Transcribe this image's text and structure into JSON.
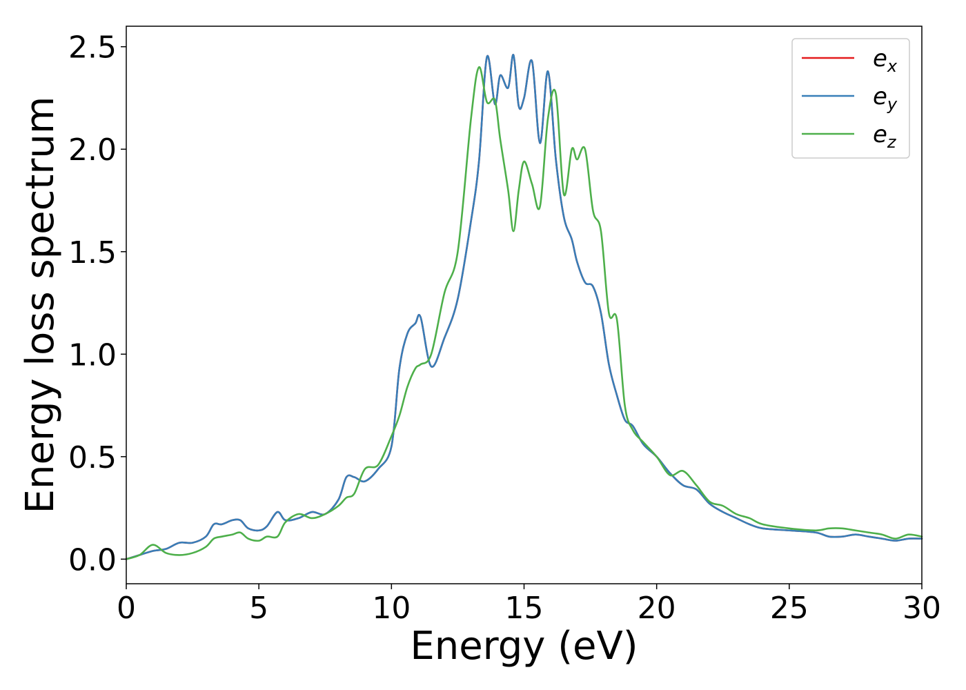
{
  "chart_data": {
    "type": "line",
    "xlabel": "Energy (eV)",
    "ylabel": "Energy loss spectrum",
    "xlim": [
      0,
      30
    ],
    "ylim": [
      -0.12,
      2.6
    ],
    "xticks": [
      0,
      5,
      10,
      15,
      20,
      25,
      30
    ],
    "xtick_labels": [
      "0",
      "5",
      "10",
      "15",
      "20",
      "25",
      "30"
    ],
    "yticks": [
      0.0,
      0.5,
      1.0,
      1.5,
      2.0,
      2.5
    ],
    "ytick_labels": [
      "0.0",
      "0.5",
      "1.0",
      "1.5",
      "2.0",
      "2.5"
    ],
    "grid": false,
    "legend_position": "top-right",
    "x": [
      0,
      0.5,
      1,
      1.5,
      2,
      2.5,
      3,
      3.3,
      3.6,
      4,
      4.3,
      4.6,
      5,
      5.3,
      5.7,
      6,
      6.5,
      7,
      7.5,
      8,
      8.3,
      8.6,
      9,
      9.5,
      10,
      10.3,
      10.6,
      10.9,
      11.1,
      11.5,
      12,
      12.5,
      13,
      13.3,
      13.6,
      13.9,
      14.1,
      14.4,
      14.6,
      14.8,
      15,
      15.3,
      15.6,
      15.9,
      16.2,
      16.5,
      16.8,
      17,
      17.3,
      17.6,
      17.9,
      18.2,
      18.5,
      18.8,
      19.1,
      19.5,
      20,
      20.5,
      21,
      21.5,
      22,
      22.5,
      23,
      23.5,
      24,
      25,
      26,
      26.5,
      27,
      27.5,
      28,
      28.5,
      29,
      29.5,
      30
    ],
    "series": [
      {
        "name": "e_x",
        "label_base": "e",
        "label_sub": "x",
        "color": "#e41a1c",
        "y": [
          0,
          0.02,
          0.04,
          0.05,
          0.08,
          0.08,
          0.11,
          0.17,
          0.17,
          0.19,
          0.19,
          0.15,
          0.14,
          0.16,
          0.23,
          0.19,
          0.2,
          0.23,
          0.22,
          0.29,
          0.4,
          0.4,
          0.38,
          0.44,
          0.55,
          0.93,
          1.1,
          1.15,
          1.18,
          0.94,
          1.08,
          1.27,
          1.65,
          1.94,
          2.45,
          2.22,
          2.36,
          2.3,
          2.46,
          2.21,
          2.25,
          2.43,
          2.03,
          2.38,
          1.95,
          1.67,
          1.56,
          1.45,
          1.35,
          1.33,
          1.2,
          0.95,
          0.8,
          0.68,
          0.65,
          0.56,
          0.5,
          0.42,
          0.36,
          0.34,
          0.27,
          0.23,
          0.2,
          0.17,
          0.15,
          0.14,
          0.13,
          0.11,
          0.11,
          0.12,
          0.11,
          0.1,
          0.09,
          0.1,
          0.1
        ]
      },
      {
        "name": "e_y",
        "label_base": "e",
        "label_sub": "y",
        "color": "#377eb8",
        "y": [
          0,
          0.02,
          0.04,
          0.05,
          0.08,
          0.08,
          0.11,
          0.17,
          0.17,
          0.19,
          0.19,
          0.15,
          0.14,
          0.16,
          0.23,
          0.19,
          0.2,
          0.23,
          0.22,
          0.29,
          0.4,
          0.4,
          0.38,
          0.44,
          0.55,
          0.93,
          1.1,
          1.15,
          1.18,
          0.94,
          1.08,
          1.27,
          1.65,
          1.94,
          2.45,
          2.22,
          2.36,
          2.3,
          2.46,
          2.21,
          2.25,
          2.43,
          2.03,
          2.38,
          1.95,
          1.67,
          1.56,
          1.45,
          1.35,
          1.33,
          1.2,
          0.95,
          0.8,
          0.68,
          0.65,
          0.56,
          0.5,
          0.42,
          0.36,
          0.34,
          0.27,
          0.23,
          0.2,
          0.17,
          0.15,
          0.14,
          0.13,
          0.11,
          0.11,
          0.12,
          0.11,
          0.1,
          0.09,
          0.1,
          0.1
        ]
      },
      {
        "name": "e_z",
        "label_base": "e",
        "label_sub": "z",
        "color": "#4daf4a",
        "y": [
          0,
          0.02,
          0.07,
          0.03,
          0.02,
          0.03,
          0.06,
          0.1,
          0.11,
          0.12,
          0.13,
          0.1,
          0.09,
          0.11,
          0.11,
          0.18,
          0.22,
          0.2,
          0.22,
          0.26,
          0.3,
          0.32,
          0.44,
          0.46,
          0.6,
          0.7,
          0.84,
          0.93,
          0.95,
          1.0,
          1.3,
          1.5,
          2.15,
          2.4,
          2.23,
          2.24,
          2.05,
          1.8,
          1.6,
          1.8,
          1.94,
          1.83,
          1.72,
          2.15,
          2.27,
          1.78,
          2.0,
          1.95,
          2.0,
          1.7,
          1.6,
          1.2,
          1.17,
          0.75,
          0.63,
          0.57,
          0.5,
          0.41,
          0.43,
          0.36,
          0.28,
          0.26,
          0.22,
          0.2,
          0.17,
          0.15,
          0.14,
          0.15,
          0.15,
          0.14,
          0.13,
          0.12,
          0.1,
          0.12,
          0.11
        ]
      }
    ]
  }
}
